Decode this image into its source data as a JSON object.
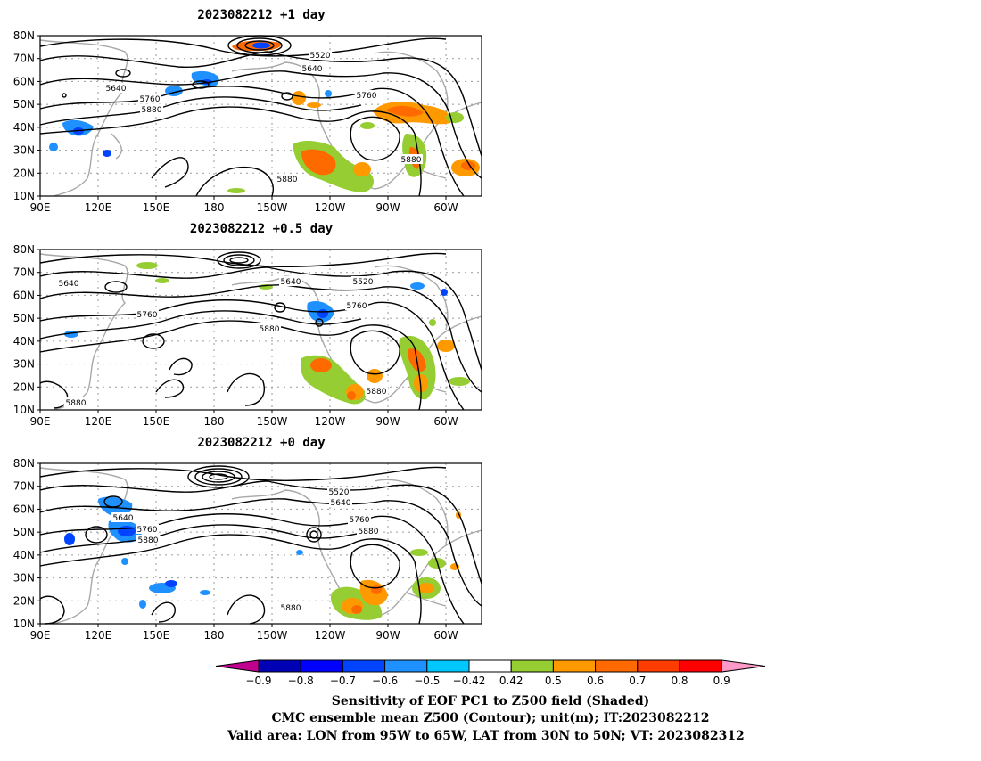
{
  "panels": [
    {
      "title": "2023082212  +1 day",
      "contour_labels": [
        "5520",
        "5640",
        "5640",
        "5760",
        "5760",
        "5880",
        "5880",
        "5880"
      ]
    },
    {
      "title": "2023082212  +0.5 day",
      "contour_labels": [
        "5640",
        "5640",
        "5520",
        "5760",
        "5760",
        "5880",
        "5880",
        "5880"
      ]
    },
    {
      "title": "2023082212  +0 day",
      "contour_labels": [
        "5520",
        "5640",
        "5640",
        "5760",
        "5760",
        "5880",
        "5880",
        "5880"
      ]
    }
  ],
  "axes": {
    "lat_ticks": [
      "80N",
      "70N",
      "60N",
      "50N",
      "40N",
      "30N",
      "20N",
      "10N"
    ],
    "lon_ticks": [
      "90E",
      "120E",
      "150E",
      "180",
      "150W",
      "120W",
      "90W",
      "60W"
    ]
  },
  "colorbar": {
    "labels": [
      "−0.9",
      "−0.8",
      "−0.7",
      "−0.6",
      "−0.5",
      "−0.42",
      "0.42",
      "0.5",
      "0.6",
      "0.7",
      "0.8",
      "0.9"
    ],
    "colors": [
      "#c0008f",
      "#0000b4",
      "#0000ff",
      "#0044ff",
      "#1f90ff",
      "#00c8ff",
      "#ffffff",
      "#96cd32",
      "#ff9900",
      "#ff6a00",
      "#ff3c00",
      "#ff0000",
      "#ff99c8"
    ]
  },
  "caption": {
    "line1": "Sensitivity of EOF PC1 to Z500 field (Shaded)",
    "line2": "CMC ensemble mean Z500 (Contour); unit(m); IT:2023082212",
    "line3": "Valid area: LON from 95W to 65W, LAT from 30N to 50N; VT: 2023082312"
  }
}
